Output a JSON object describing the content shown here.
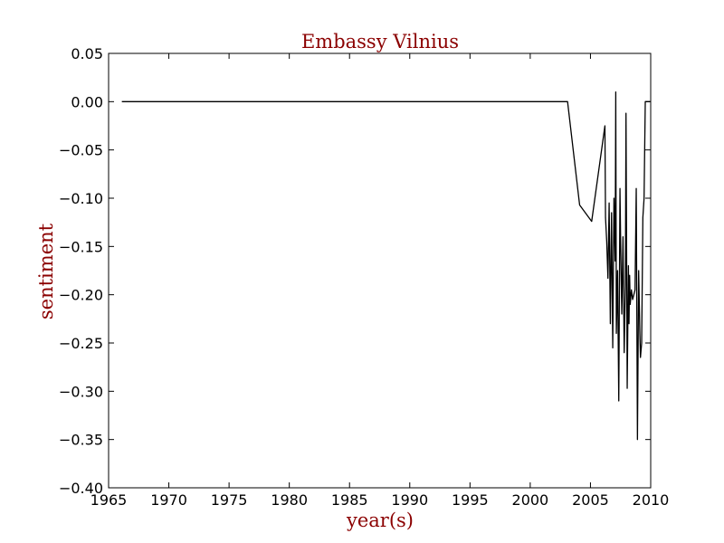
{
  "chart_data": {
    "type": "line",
    "title": "Embassy Vilnius",
    "xlabel": "year(s)",
    "ylabel": "sentiment",
    "xlim": [
      1965,
      2010
    ],
    "ylim": [
      -0.4,
      0.05
    ],
    "x_ticks": [
      1965,
      1970,
      1975,
      1980,
      1985,
      1990,
      1995,
      2000,
      2005,
      2010
    ],
    "x_tick_labels": [
      "1965",
      "1970",
      "1975",
      "1980",
      "1985",
      "1990",
      "1995",
      "2000",
      "2005",
      "2010"
    ],
    "y_ticks": [
      0.05,
      0.0,
      -0.05,
      -0.1,
      -0.15,
      -0.2,
      -0.25,
      -0.3,
      -0.35,
      -0.4
    ],
    "y_tick_labels": [
      "0.05",
      "0.00",
      "−0.05",
      "−0.10",
      "−0.15",
      "−0.20",
      "−0.25",
      "−0.30",
      "−0.35",
      "−0.40"
    ],
    "grid": false,
    "colors": {
      "line": "#000000",
      "text_accent": "#8b0000",
      "axes": "#000000"
    },
    "series": [
      {
        "x": [
          1966.1,
          2003.1,
          2004.1,
          2005.1,
          2006.2,
          2006.25,
          2006.35,
          2006.45,
          2006.55,
          2006.65,
          2006.75,
          2006.85,
          2006.95,
          2007.05,
          2007.1,
          2007.15,
          2007.25,
          2007.35,
          2007.45,
          2007.5,
          2007.6,
          2007.7,
          2007.8,
          2007.9,
          2007.95,
          2008.05,
          2008.15,
          2008.2,
          2008.25,
          2008.3,
          2008.4,
          2008.5,
          2008.6,
          2008.7,
          2008.8,
          2008.9,
          2009.0,
          2009.1,
          2009.15,
          2009.25,
          2009.35,
          2009.45,
          2009.55,
          2009.65,
          2009.75,
          2009.85,
          2009.95
        ],
        "y": [
          0.0,
          0.0,
          -0.107,
          -0.124,
          -0.025,
          -0.12,
          -0.145,
          -0.183,
          -0.105,
          -0.23,
          -0.115,
          -0.255,
          -0.1,
          -0.165,
          0.01,
          -0.24,
          -0.175,
          -0.31,
          -0.09,
          -0.14,
          -0.22,
          -0.14,
          -0.26,
          -0.19,
          -0.012,
          -0.297,
          -0.17,
          -0.23,
          -0.18,
          -0.21,
          -0.195,
          -0.205,
          -0.2,
          -0.195,
          -0.09,
          -0.35,
          -0.175,
          -0.24,
          -0.265,
          -0.25,
          -0.12,
          -0.1,
          0.0,
          -0.0,
          -0.0,
          -0.0,
          0.0
        ]
      }
    ]
  }
}
